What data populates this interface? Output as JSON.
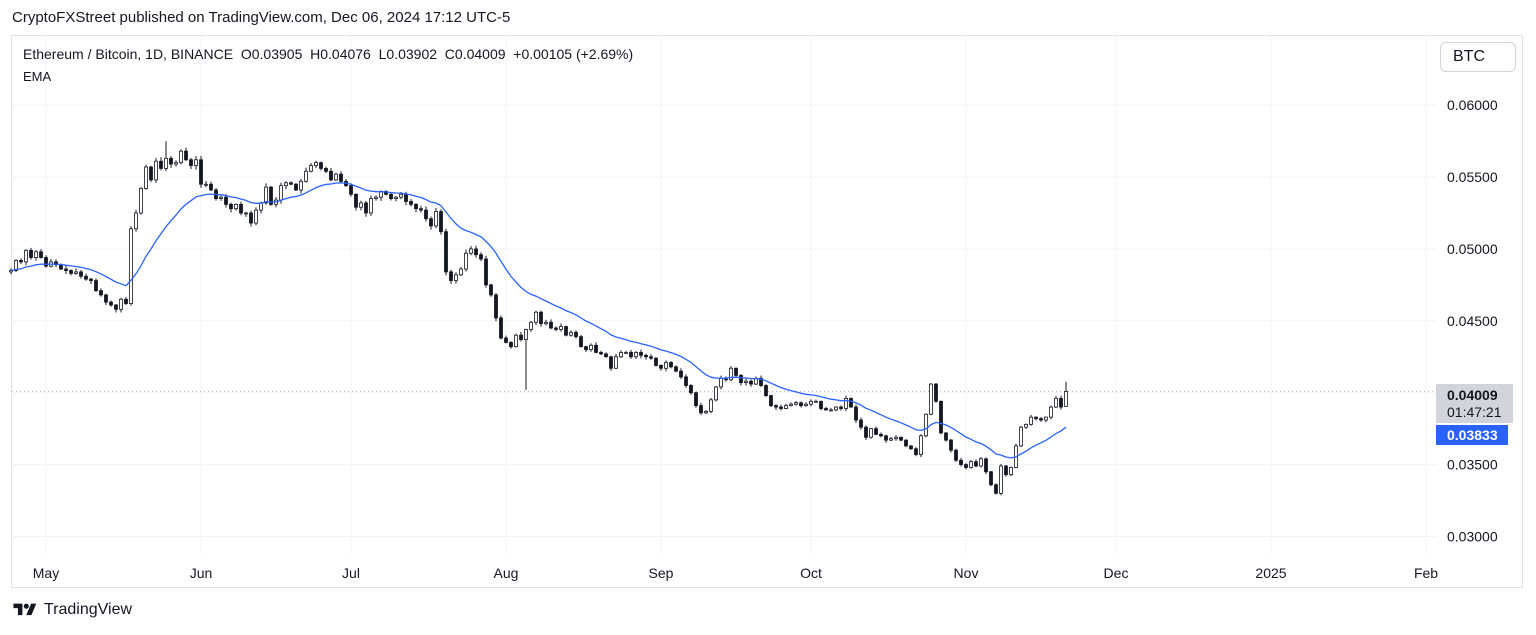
{
  "header": {
    "publish_line": "CryptoFXStreet published on TradingView.com, Dec 06, 2024 17:12 UTC-5"
  },
  "legend": {
    "symbol_line": "Ethereum / Bitcoin, 1D, BINANCE  O0.03905  H0.04076  L0.03902  C0.04009  +0.00105 (+2.69%)",
    "indicator": "EMA"
  },
  "currency_button": "BTC",
  "price_labels": {
    "last_price": "0.04009",
    "countdown": "01:47:21",
    "ema_value": "0.03833"
  },
  "footer": {
    "brand": "TradingView"
  },
  "colors": {
    "candle": "#131722",
    "ema": "#2962ff",
    "grid": "#f0f3fa",
    "last_price_bg": "#d1d4dc",
    "ema_label_bg": "#2962ff"
  },
  "chart_data": {
    "type": "candlestick",
    "indicator": "EMA",
    "y_ticks": [
      "0.03000",
      "0.03500",
      "0.04000",
      "0.04500",
      "0.05000",
      "0.05500",
      "0.06000"
    ],
    "ylim": [
      0.02885,
      0.06481
    ],
    "x_ticks": [
      "May",
      "Jun",
      "Jul",
      "Aug",
      "Sep",
      "Oct",
      "Nov",
      "Dec",
      "2025",
      "Feb"
    ],
    "x_tick_dates": [
      "2024-05-01",
      "2024-06-01",
      "2024-07-01",
      "2024-08-01",
      "2024-09-01",
      "2024-10-01",
      "2024-11-01",
      "2024-12-01",
      "2025-01-01",
      "2025-02-01"
    ],
    "close_series": {
      "start_date": "2024-04-24",
      "values": [
        0.0485,
        0.0492,
        0.0491,
        0.0499,
        0.0494,
        0.0498,
        0.0494,
        0.0488,
        0.0491,
        0.0489,
        0.0486,
        0.0485,
        0.0483,
        0.0484,
        0.0481,
        0.0479,
        0.0478,
        0.0471,
        0.0468,
        0.0463,
        0.0461,
        0.0458,
        0.0465,
        0.0462,
        0.0514,
        0.0525,
        0.0542,
        0.0557,
        0.0548,
        0.0561,
        0.0556,
        0.0563,
        0.0559,
        0.056,
        0.0568,
        0.0562,
        0.0558,
        0.0562,
        0.0545,
        0.0545,
        0.0541,
        0.0535,
        0.0536,
        0.0531,
        0.0528,
        0.0531,
        0.0525,
        0.0525,
        0.0518,
        0.0527,
        0.0532,
        0.0543,
        0.0531,
        0.0534,
        0.0544,
        0.0546,
        0.0545,
        0.0541,
        0.0547,
        0.0554,
        0.0558,
        0.056,
        0.0556,
        0.0554,
        0.0548,
        0.0552,
        0.0547,
        0.0544,
        0.0538,
        0.0529,
        0.0532,
        0.0525,
        0.0535,
        0.0536,
        0.054,
        0.0538,
        0.0535,
        0.0536,
        0.0538,
        0.0533,
        0.0531,
        0.0528,
        0.0527,
        0.0521,
        0.0516,
        0.0526,
        0.0512,
        0.0484,
        0.0478,
        0.0482,
        0.0486,
        0.0497,
        0.05,
        0.0496,
        0.0493,
        0.0475,
        0.0468,
        0.0452,
        0.0438,
        0.0435,
        0.0432,
        0.044,
        0.0437,
        0.0444,
        0.0449,
        0.0456,
        0.0448,
        0.0449,
        0.0445,
        0.0444,
        0.0446,
        0.044,
        0.0442,
        0.0439,
        0.0432,
        0.043,
        0.0433,
        0.0428,
        0.0427,
        0.0425,
        0.0417,
        0.0425,
        0.0428,
        0.0428,
        0.0425,
        0.0428,
        0.0426,
        0.0425,
        0.0424,
        0.0419,
        0.0417,
        0.0421,
        0.0418,
        0.0415,
        0.0411,
        0.0405,
        0.04,
        0.0391,
        0.0386,
        0.0387,
        0.0395,
        0.0404,
        0.041,
        0.0409,
        0.0417,
        0.0412,
        0.0407,
        0.0408,
        0.0406,
        0.041,
        0.0405,
        0.0398,
        0.0391,
        0.039,
        0.0389,
        0.0391,
        0.0392,
        0.0393,
        0.0391,
        0.0392,
        0.0394,
        0.0394,
        0.0389,
        0.0388,
        0.0388,
        0.039,
        0.0389,
        0.0396,
        0.039,
        0.0381,
        0.0376,
        0.0369,
        0.0375,
        0.0371,
        0.037,
        0.0367,
        0.0368,
        0.0369,
        0.0367,
        0.0363,
        0.0361,
        0.0357,
        0.037,
        0.0385,
        0.0406,
        0.0394,
        0.0372,
        0.0367,
        0.036,
        0.0353,
        0.035,
        0.0348,
        0.0352,
        0.0349,
        0.0354,
        0.0345,
        0.0336,
        0.033,
        0.0349,
        0.0343,
        0.0348,
        0.0363,
        0.0376,
        0.0378,
        0.0383,
        0.0382,
        0.0381,
        0.0383,
        0.039,
        0.0396,
        0.039,
        0.0401
      ]
    },
    "last_candle": {
      "date": "2024-12-06",
      "open": 0.03905,
      "high": 0.04076,
      "low": 0.03902,
      "close": 0.04009,
      "change": "+0.00105",
      "change_pct": "+2.69%"
    },
    "ema_last": 0.03833,
    "wick_extremes": [
      {
        "date": "2024-08-05",
        "low": 0.0402
      },
      {
        "date": "2024-05-25",
        "high": 0.0575
      },
      {
        "date": "2024-11-22",
        "low": 0.0318
      }
    ]
  }
}
